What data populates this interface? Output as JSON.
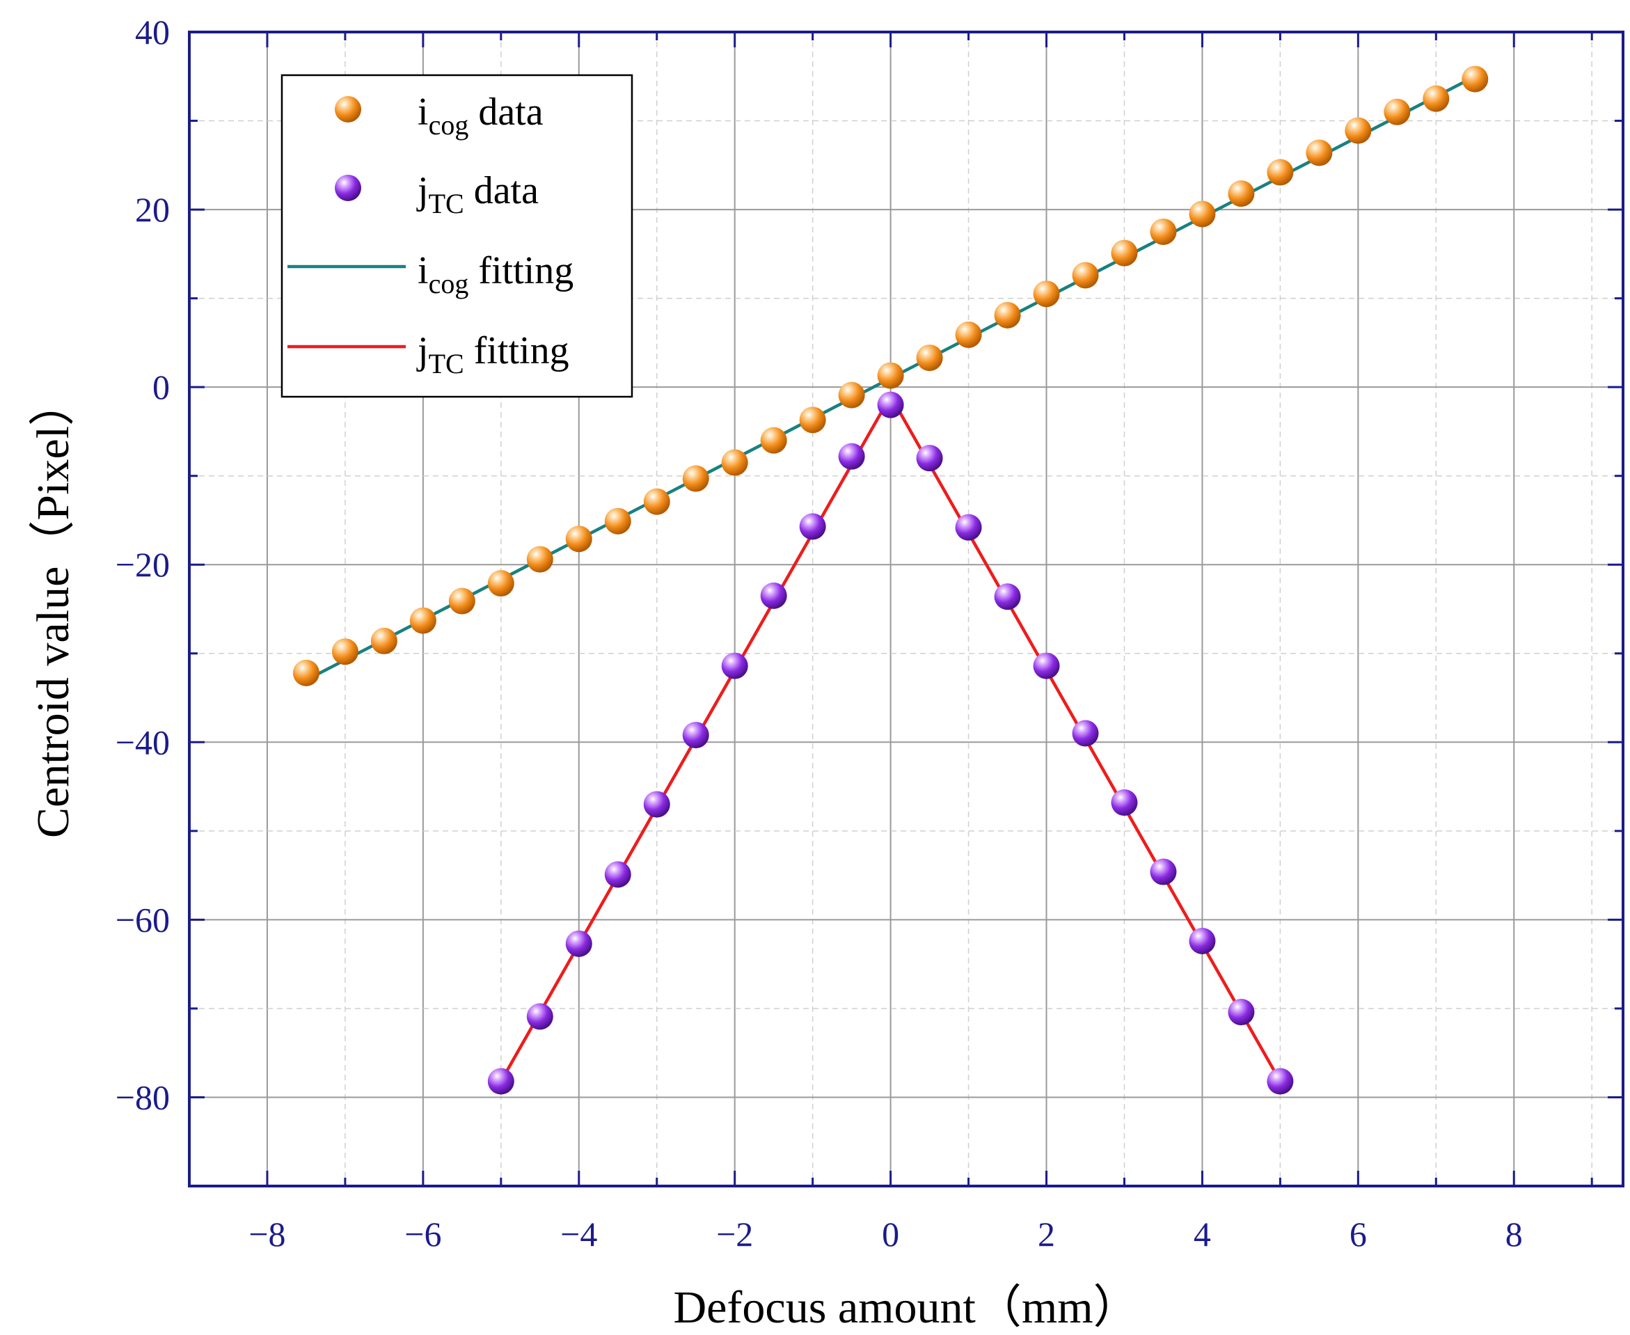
{
  "chart_data": {
    "type": "scatter",
    "title": "",
    "xlabel": "Defocus amount（mm）",
    "ylabel": "Centroid value（Pixel）",
    "xlim": [
      -9,
      9.4
    ],
    "ylim": [
      -90,
      40
    ],
    "x_ticks": [
      -8,
      -6,
      -4,
      -2,
      0,
      2,
      4,
      6,
      8
    ],
    "x_tick_labels": [
      "−8",
      "−6",
      "−4",
      "−2",
      "0",
      "2",
      "4",
      "6",
      "8"
    ],
    "y_ticks": [
      -80,
      -60,
      -40,
      -20,
      0,
      20,
      40
    ],
    "y_tick_labels": [
      "−80",
      "−60",
      "−40",
      "−20",
      "0",
      "20",
      "40"
    ],
    "grid": true,
    "legend_position": "top-left",
    "series": [
      {
        "name": "icog data",
        "label_main": "i",
        "label_sub": "cog",
        "label_rest": " data",
        "kind": "markers",
        "color": "#f28c1a",
        "x": [
          -7.5,
          -7,
          -6.5,
          -6,
          -5.5,
          -5,
          -4.5,
          -4,
          -3.5,
          -3,
          -2.5,
          -2,
          -1.5,
          -1,
          -0.5,
          0,
          0.5,
          1,
          1.5,
          2,
          2.5,
          3,
          3.5,
          4,
          4.5,
          5,
          5.5,
          6,
          6.5,
          7,
          7.5
        ],
        "y": [
          -32.2,
          -29.8,
          -28.6,
          -26.3,
          -24.1,
          -22.1,
          -19.4,
          -17.1,
          -15.1,
          -12.9,
          -10.3,
          -8.5,
          -6.0,
          -3.7,
          -0.9,
          1.3,
          3.3,
          5.9,
          8.1,
          10.5,
          12.6,
          15.1,
          17.5,
          19.5,
          21.8,
          24.2,
          26.4,
          28.9,
          31.0,
          32.5,
          34.7
        ]
      },
      {
        "name": "jTC data",
        "label_main": "j",
        "label_sub": "TC",
        "label_rest": "  data",
        "kind": "markers",
        "color": "#8a2be2",
        "x": [
          -5,
          -4.5,
          -4,
          -3.5,
          -3,
          -2.5,
          -2,
          -1.5,
          -1,
          -0.5,
          0,
          0.5,
          1,
          1.5,
          2,
          2.5,
          3,
          3.5,
          4,
          4.5,
          5
        ],
        "y": [
          -78.2,
          -70.9,
          -62.7,
          -54.9,
          -47.0,
          -39.2,
          -31.4,
          -23.5,
          -15.7,
          -7.8,
          -2.0,
          -8.0,
          -15.8,
          -23.6,
          -31.4,
          -39.0,
          -46.8,
          -54.6,
          -62.4,
          -70.4,
          -78.2
        ]
      },
      {
        "name": "icog fitting",
        "label_main": "i",
        "label_sub": "cog",
        "label_rest": "  fitting",
        "kind": "line",
        "color": "#1a8080",
        "x": [
          -7.5,
          7.5
        ],
        "y": [
          -33.0,
          35.0
        ]
      },
      {
        "name": "jTC fitting",
        "label_main": "j",
        "label_sub": "TC",
        "label_rest": " fitting",
        "kind": "line",
        "color": "#ee1c1c",
        "x": [
          -5,
          0,
          5
        ],
        "y": [
          -78.2,
          -1.0,
          -78.2
        ]
      }
    ]
  },
  "colors": {
    "axis": "#1b1b8a",
    "grid_major": "#9a9a9a",
    "grid_minor": "#d0d0d0"
  }
}
